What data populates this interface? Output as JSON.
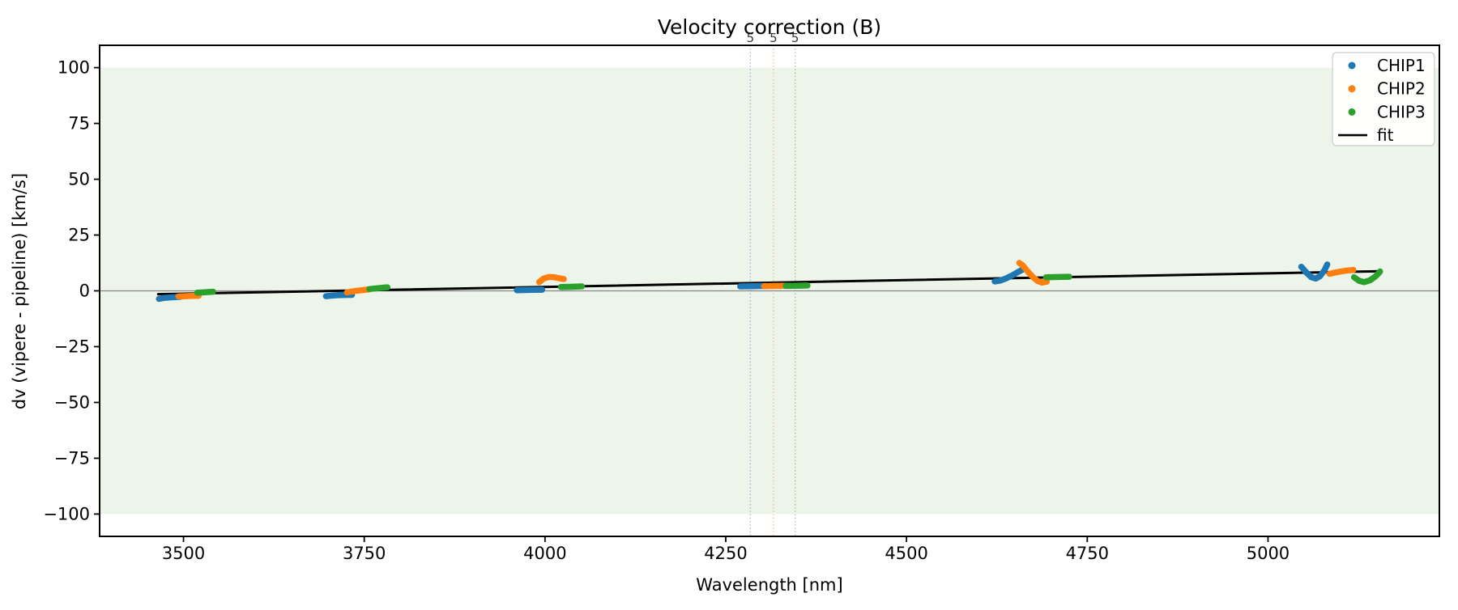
{
  "chart_data": {
    "type": "scatter",
    "title": "Velocity correction (B)",
    "xlabel": "Wavelength [nm]",
    "ylabel": "dv (vipere - pipeline) [km/s]",
    "xlim": [
      3384,
      5237
    ],
    "ylim": [
      -110,
      110
    ],
    "x_ticks": [
      3500,
      3750,
      4000,
      4250,
      4500,
      4750,
      5000
    ],
    "y_ticks": [
      100,
      75,
      50,
      25,
      0,
      -25,
      -50,
      -75,
      -100
    ],
    "grid": "off",
    "shaded_band": {
      "ymin": -100,
      "ymax": 100,
      "color": "#edf4ea"
    },
    "zero_line": {
      "y": 0,
      "color": "#888888"
    },
    "reference_lines": [
      {
        "x": 4284,
        "label": "5",
        "color": "#1f77b4"
      },
      {
        "x": 4316,
        "label": "5",
        "color": "#ff7f0e"
      },
      {
        "x": 4346,
        "label": "5",
        "color": "#2ca02c"
      }
    ],
    "fit": {
      "name": "fit",
      "color": "#000000",
      "points": [
        [
          3465,
          -1.5
        ],
        [
          5155,
          8.8
        ]
      ]
    },
    "series": [
      {
        "name": "CHIP1",
        "color": "#1f77b4",
        "segments": [
          [
            [
              3466,
              -3.6
            ],
            [
              3474,
              -3.1
            ],
            [
              3484,
              -2.9
            ],
            [
              3496,
              -2.7
            ]
          ],
          [
            [
              3697,
              -2.4
            ],
            [
              3706,
              -2.1
            ],
            [
              3716,
              -1.9
            ],
            [
              3733,
              -1.8
            ]
          ],
          [
            [
              3961,
              0.3
            ],
            [
              3978,
              0.4
            ],
            [
              3996,
              0.5
            ]
          ],
          [
            [
              4270,
              2.0
            ],
            [
              4287,
              2.1
            ],
            [
              4305,
              2.2
            ]
          ],
          [
            [
              4622,
              4.2
            ],
            [
              4630,
              4.6
            ],
            [
              4638,
              5.6
            ],
            [
              4646,
              6.9
            ],
            [
              4654,
              8.4
            ],
            [
              4661,
              9.6
            ]
          ],
          [
            [
              5046,
              10.8
            ],
            [
              5053,
              8.2
            ],
            [
              5060,
              6.1
            ],
            [
              5066,
              5.5
            ],
            [
              5072,
              6.6
            ],
            [
              5078,
              9.2
            ],
            [
              5082,
              11.8
            ]
          ]
        ]
      },
      {
        "name": "CHIP2",
        "color": "#ff7f0e",
        "segments": [
          [
            [
              3493,
              -2.5
            ],
            [
              3503,
              -2.4
            ],
            [
              3512,
              -2.3
            ],
            [
              3521,
              -2.2
            ]
          ],
          [
            [
              3726,
              -0.7
            ],
            [
              3736,
              -0.1
            ],
            [
              3747,
              0.3
            ],
            [
              3757,
              0.7
            ]
          ],
          [
            [
              3992,
              3.9
            ],
            [
              3998,
              5.5
            ],
            [
              4005,
              6.2
            ],
            [
              4013,
              6.1
            ],
            [
              4020,
              5.6
            ],
            [
              4026,
              5.3
            ]
          ],
          [
            [
              4303,
              2.1
            ],
            [
              4318,
              2.2
            ],
            [
              4333,
              2.3
            ]
          ],
          [
            [
              4656,
              12.5
            ],
            [
              4661,
              11.3
            ],
            [
              4668,
              8.5
            ],
            [
              4675,
              6.1
            ],
            [
              4681,
              4.5
            ],
            [
              4687,
              3.7
            ],
            [
              4694,
              4.1
            ]
          ],
          [
            [
              5085,
              7.6
            ],
            [
              5096,
              8.4
            ],
            [
              5107,
              9.0
            ],
            [
              5118,
              9.4
            ]
          ]
        ]
      },
      {
        "name": "CHIP3",
        "color": "#2ca02c",
        "segments": [
          [
            [
              3519,
              -0.8
            ],
            [
              3530,
              -0.6
            ],
            [
              3541,
              -0.4
            ]
          ],
          [
            [
              3757,
              0.8
            ],
            [
              3769,
              1.2
            ],
            [
              3782,
              1.6
            ]
          ],
          [
            [
              4022,
              1.7
            ],
            [
              4036,
              1.8
            ],
            [
              4051,
              2.0
            ]
          ],
          [
            [
              4333,
              2.2
            ],
            [
              4348,
              2.3
            ],
            [
              4363,
              2.4
            ]
          ],
          [
            [
              4693,
              6.1
            ],
            [
              4709,
              6.2
            ],
            [
              4725,
              6.3
            ]
          ],
          [
            [
              5119,
              6.1
            ],
            [
              5126,
              4.5
            ],
            [
              5133,
              3.9
            ],
            [
              5141,
              4.7
            ],
            [
              5148,
              6.3
            ],
            [
              5153,
              7.9
            ],
            [
              5155,
              8.7
            ]
          ]
        ]
      }
    ],
    "legend": {
      "position": "upper right",
      "entries": [
        {
          "label": "CHIP1",
          "color": "#1f77b4",
          "marker": "dot"
        },
        {
          "label": "CHIP2",
          "color": "#ff7f0e",
          "marker": "dot"
        },
        {
          "label": "CHIP3",
          "color": "#2ca02c",
          "marker": "dot"
        },
        {
          "label": "fit",
          "color": "#000000",
          "marker": "line"
        }
      ]
    }
  }
}
